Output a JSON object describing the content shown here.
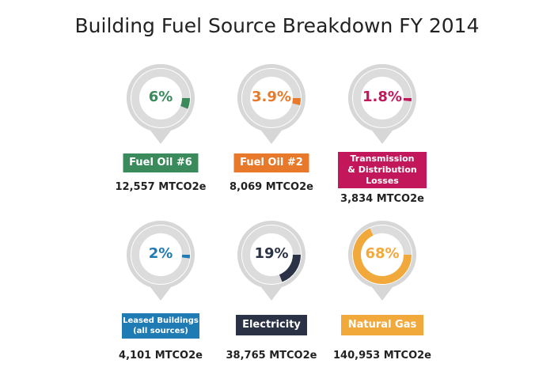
{
  "title": "Building Fuel Source Breakdown FY 2014",
  "chart_data": {
    "type": "donut-gauges",
    "title": "Building Fuel Source Breakdown FY 2014",
    "items": [
      {
        "label": "Fuel Oil #6",
        "percent": 6,
        "percent_label": "6%",
        "value_label": "12,557 MTCO2e",
        "value": 12557,
        "color": "#3a8a5c"
      },
      {
        "label": "Fuel Oil #2",
        "percent": 3.9,
        "percent_label": "3.9%",
        "value_label": "8,069 MTCO2e",
        "value": 8069,
        "color": "#e9792a"
      },
      {
        "label": "Transmission\n& Distribution\nLosses",
        "percent": 1.8,
        "percent_label": "1.8%",
        "value_label": "3,834 MTCO2e",
        "value": 3834,
        "color": "#c2185b"
      },
      {
        "label": "Leased Buildings\n(all sources)",
        "percent": 2,
        "percent_label": "2%",
        "value_label": "4,101 MTCO2e",
        "value": 4101,
        "color": "#1f7bb4"
      },
      {
        "label": "Electricity",
        "percent": 19,
        "percent_label": "19%",
        "value_label": "38,765 MTCO2e",
        "value": 38765,
        "color": "#2b3245"
      },
      {
        "label": "Natural Gas",
        "percent": 68,
        "percent_label": "68%",
        "value_label": "140,953 MTCO2e",
        "value": 140953,
        "color": "#f2a93b"
      }
    ],
    "unit": "MTCO2e"
  }
}
